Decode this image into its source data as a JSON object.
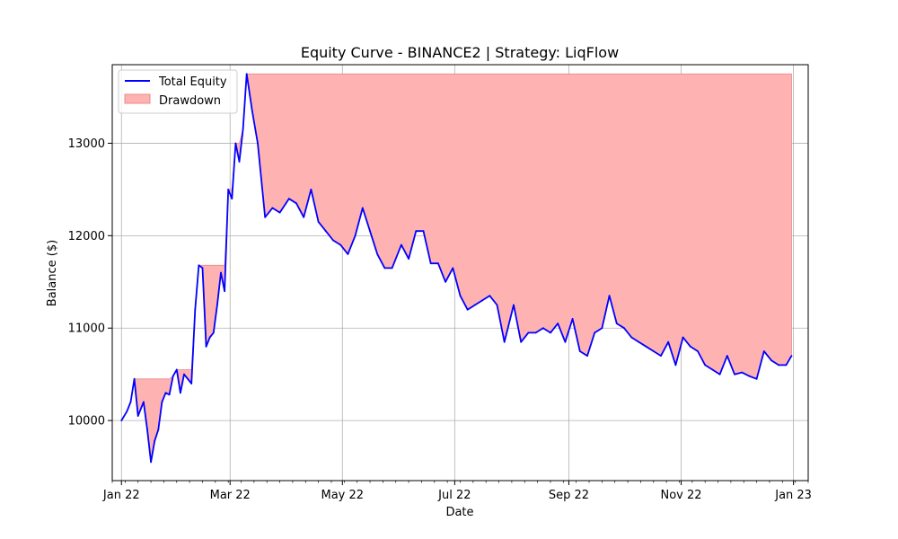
{
  "chart_data": {
    "type": "line",
    "title": "Equity Curve - BINANCE2 | Strategy: LiqFlow",
    "xlabel": "Date",
    "ylabel": "Balance ($)",
    "xlim": [
      "2021-12-27",
      "2023-01-09"
    ],
    "ylim": [
      9350,
      13850
    ],
    "grid": true,
    "legend_placement": "top-left",
    "x_ticks": [
      {
        "date": "2022-01-01",
        "label": "Jan 22"
      },
      {
        "date": "2022-03-01",
        "label": "Mar 22"
      },
      {
        "date": "2022-05-01",
        "label": "May 22"
      },
      {
        "date": "2022-07-01",
        "label": "Jul 22"
      },
      {
        "date": "2022-09-01",
        "label": "Sep 22"
      },
      {
        "date": "2022-11-01",
        "label": "Nov 22"
      },
      {
        "date": "2023-01-01",
        "label": "Jan 23"
      }
    ],
    "y_ticks": [
      10000,
      11000,
      12000,
      13000
    ],
    "colors": {
      "equity": "#0000ff",
      "drawdown": "#ffb2b2",
      "drawdown_edge": "#e88a8a",
      "grid": "#b0b0b0"
    },
    "series": [
      {
        "name": "Total Equity",
        "x": [
          "2022-01-01",
          "2022-01-04",
          "2022-01-06",
          "2022-01-08",
          "2022-01-10",
          "2022-01-12",
          "2022-01-13",
          "2022-01-15",
          "2022-01-17",
          "2022-01-19",
          "2022-01-21",
          "2022-01-23",
          "2022-01-25",
          "2022-01-27",
          "2022-01-29",
          "2022-01-31",
          "2022-02-02",
          "2022-02-04",
          "2022-02-06",
          "2022-02-08",
          "2022-02-10",
          "2022-02-12",
          "2022-02-14",
          "2022-02-16",
          "2022-02-18",
          "2022-02-20",
          "2022-02-22",
          "2022-02-24",
          "2022-02-26",
          "2022-02-28",
          "2022-03-02",
          "2022-03-04",
          "2022-03-06",
          "2022-03-08",
          "2022-03-10",
          "2022-03-13",
          "2022-03-16",
          "2022-03-20",
          "2022-03-24",
          "2022-03-28",
          "2022-04-02",
          "2022-04-06",
          "2022-04-10",
          "2022-04-14",
          "2022-04-18",
          "2022-04-22",
          "2022-04-26",
          "2022-04-30",
          "2022-05-04",
          "2022-05-08",
          "2022-05-12",
          "2022-05-16",
          "2022-05-20",
          "2022-05-24",
          "2022-05-28",
          "2022-06-02",
          "2022-06-06",
          "2022-06-10",
          "2022-06-14",
          "2022-06-18",
          "2022-06-22",
          "2022-06-26",
          "2022-06-30",
          "2022-07-04",
          "2022-07-08",
          "2022-07-12",
          "2022-07-16",
          "2022-07-20",
          "2022-07-24",
          "2022-07-28",
          "2022-08-02",
          "2022-08-06",
          "2022-08-10",
          "2022-08-14",
          "2022-08-18",
          "2022-08-22",
          "2022-08-26",
          "2022-08-30",
          "2022-09-03",
          "2022-09-07",
          "2022-09-11",
          "2022-09-15",
          "2022-09-19",
          "2022-09-23",
          "2022-09-27",
          "2022-10-01",
          "2022-10-05",
          "2022-10-09",
          "2022-10-13",
          "2022-10-17",
          "2022-10-21",
          "2022-10-25",
          "2022-10-29",
          "2022-11-02",
          "2022-11-06",
          "2022-11-10",
          "2022-11-14",
          "2022-11-18",
          "2022-11-22",
          "2022-11-26",
          "2022-11-30",
          "2022-12-04",
          "2022-12-08",
          "2022-12-12",
          "2022-12-16",
          "2022-12-20",
          "2022-12-24",
          "2022-12-28",
          "2022-12-31"
        ],
        "values": [
          10000,
          10100,
          10200,
          10450,
          10050,
          10150,
          10200,
          9900,
          9550,
          9780,
          9900,
          10200,
          10300,
          10280,
          10480,
          10550,
          10300,
          10500,
          10450,
          10400,
          11200,
          11680,
          11650,
          10800,
          10900,
          10950,
          11250,
          11600,
          11400,
          12500,
          12400,
          13000,
          12800,
          13150,
          13750,
          13350,
          13000,
          12200,
          12300,
          12250,
          12400,
          12350,
          12200,
          12500,
          12150,
          12050,
          11950,
          11900,
          11800,
          12000,
          12300,
          12050,
          11800,
          11650,
          11650,
          11900,
          11750,
          12050,
          12050,
          11700,
          11700,
          11500,
          11650,
          11350,
          11200,
          11250,
          11300,
          11350,
          11250,
          10850,
          11250,
          10850,
          10950,
          10950,
          11000,
          10950,
          11050,
          10850,
          11100,
          10750,
          10700,
          10950,
          11000,
          11350,
          11050,
          11000,
          10900,
          10850,
          10800,
          10750,
          10700,
          10850,
          10600,
          10900,
          10800,
          10750,
          10600,
          10550,
          10500,
          10700,
          10500,
          10520,
          10480,
          10450,
          10750,
          10650,
          10600,
          10600,
          10700
        ],
        "color": "#0000ff"
      },
      {
        "name": "Drawdown",
        "kind": "filled region between running peak and equity",
        "color": "#ffb2b2"
      }
    ]
  }
}
